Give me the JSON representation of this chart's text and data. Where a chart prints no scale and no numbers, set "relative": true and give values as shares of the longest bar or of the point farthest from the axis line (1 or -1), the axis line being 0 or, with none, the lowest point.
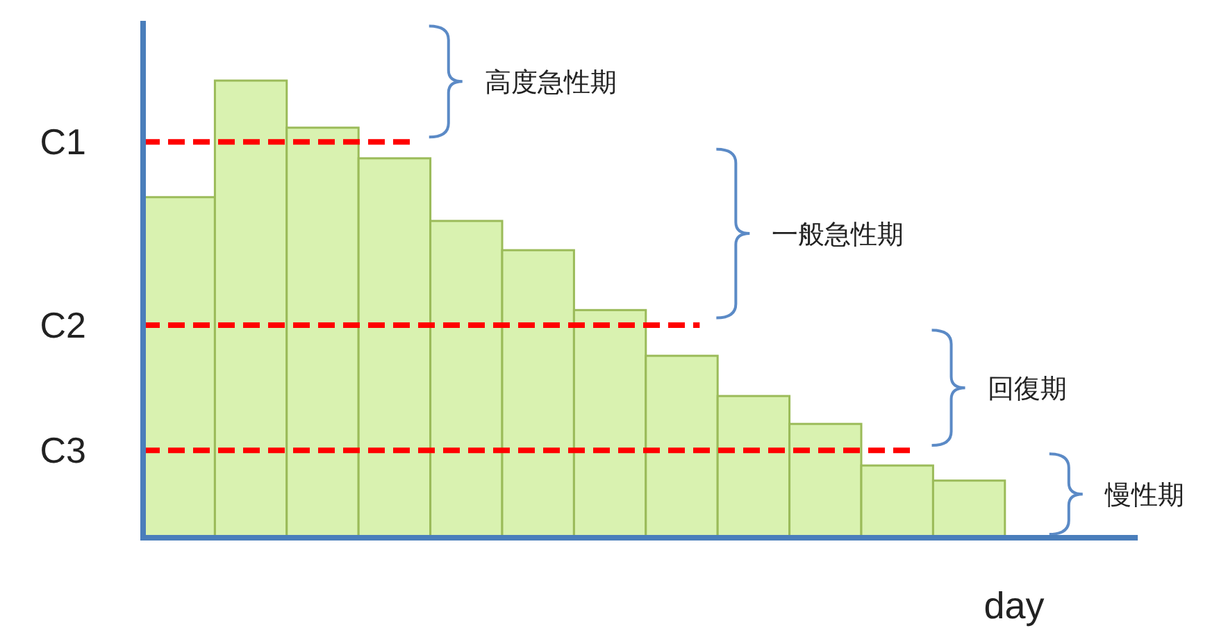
{
  "chart_data": {
    "type": "bar",
    "relative": true,
    "xlabel": "day",
    "color": "#d9f2b0",
    "categories": [
      null,
      null,
      null,
      null,
      null,
      null,
      null,
      null,
      null,
      null,
      null,
      null
    ],
    "values": [
      0.745,
      1,
      0.897,
      0.83,
      0.693,
      0.629,
      0.498,
      0.398,
      0.31,
      0.249,
      0.158,
      0.125
    ],
    "ref_lines": [
      {
        "axis": "y",
        "value": 0.866,
        "label": "C1",
        "color": "#ff0000",
        "line_style": "dashed"
      },
      {
        "axis": "y",
        "value": 0.465,
        "label": "C2",
        "color": "#ff0000",
        "line_style": "dashed"
      },
      {
        "axis": "y",
        "value": 0.191,
        "label": "C3",
        "color": "#ff0000",
        "line_style": "dashed"
      }
    ],
    "annotations": [
      "高度急性期",
      "一般急性期",
      "回復期",
      "慢性期"
    ],
    "grid": false
  }
}
